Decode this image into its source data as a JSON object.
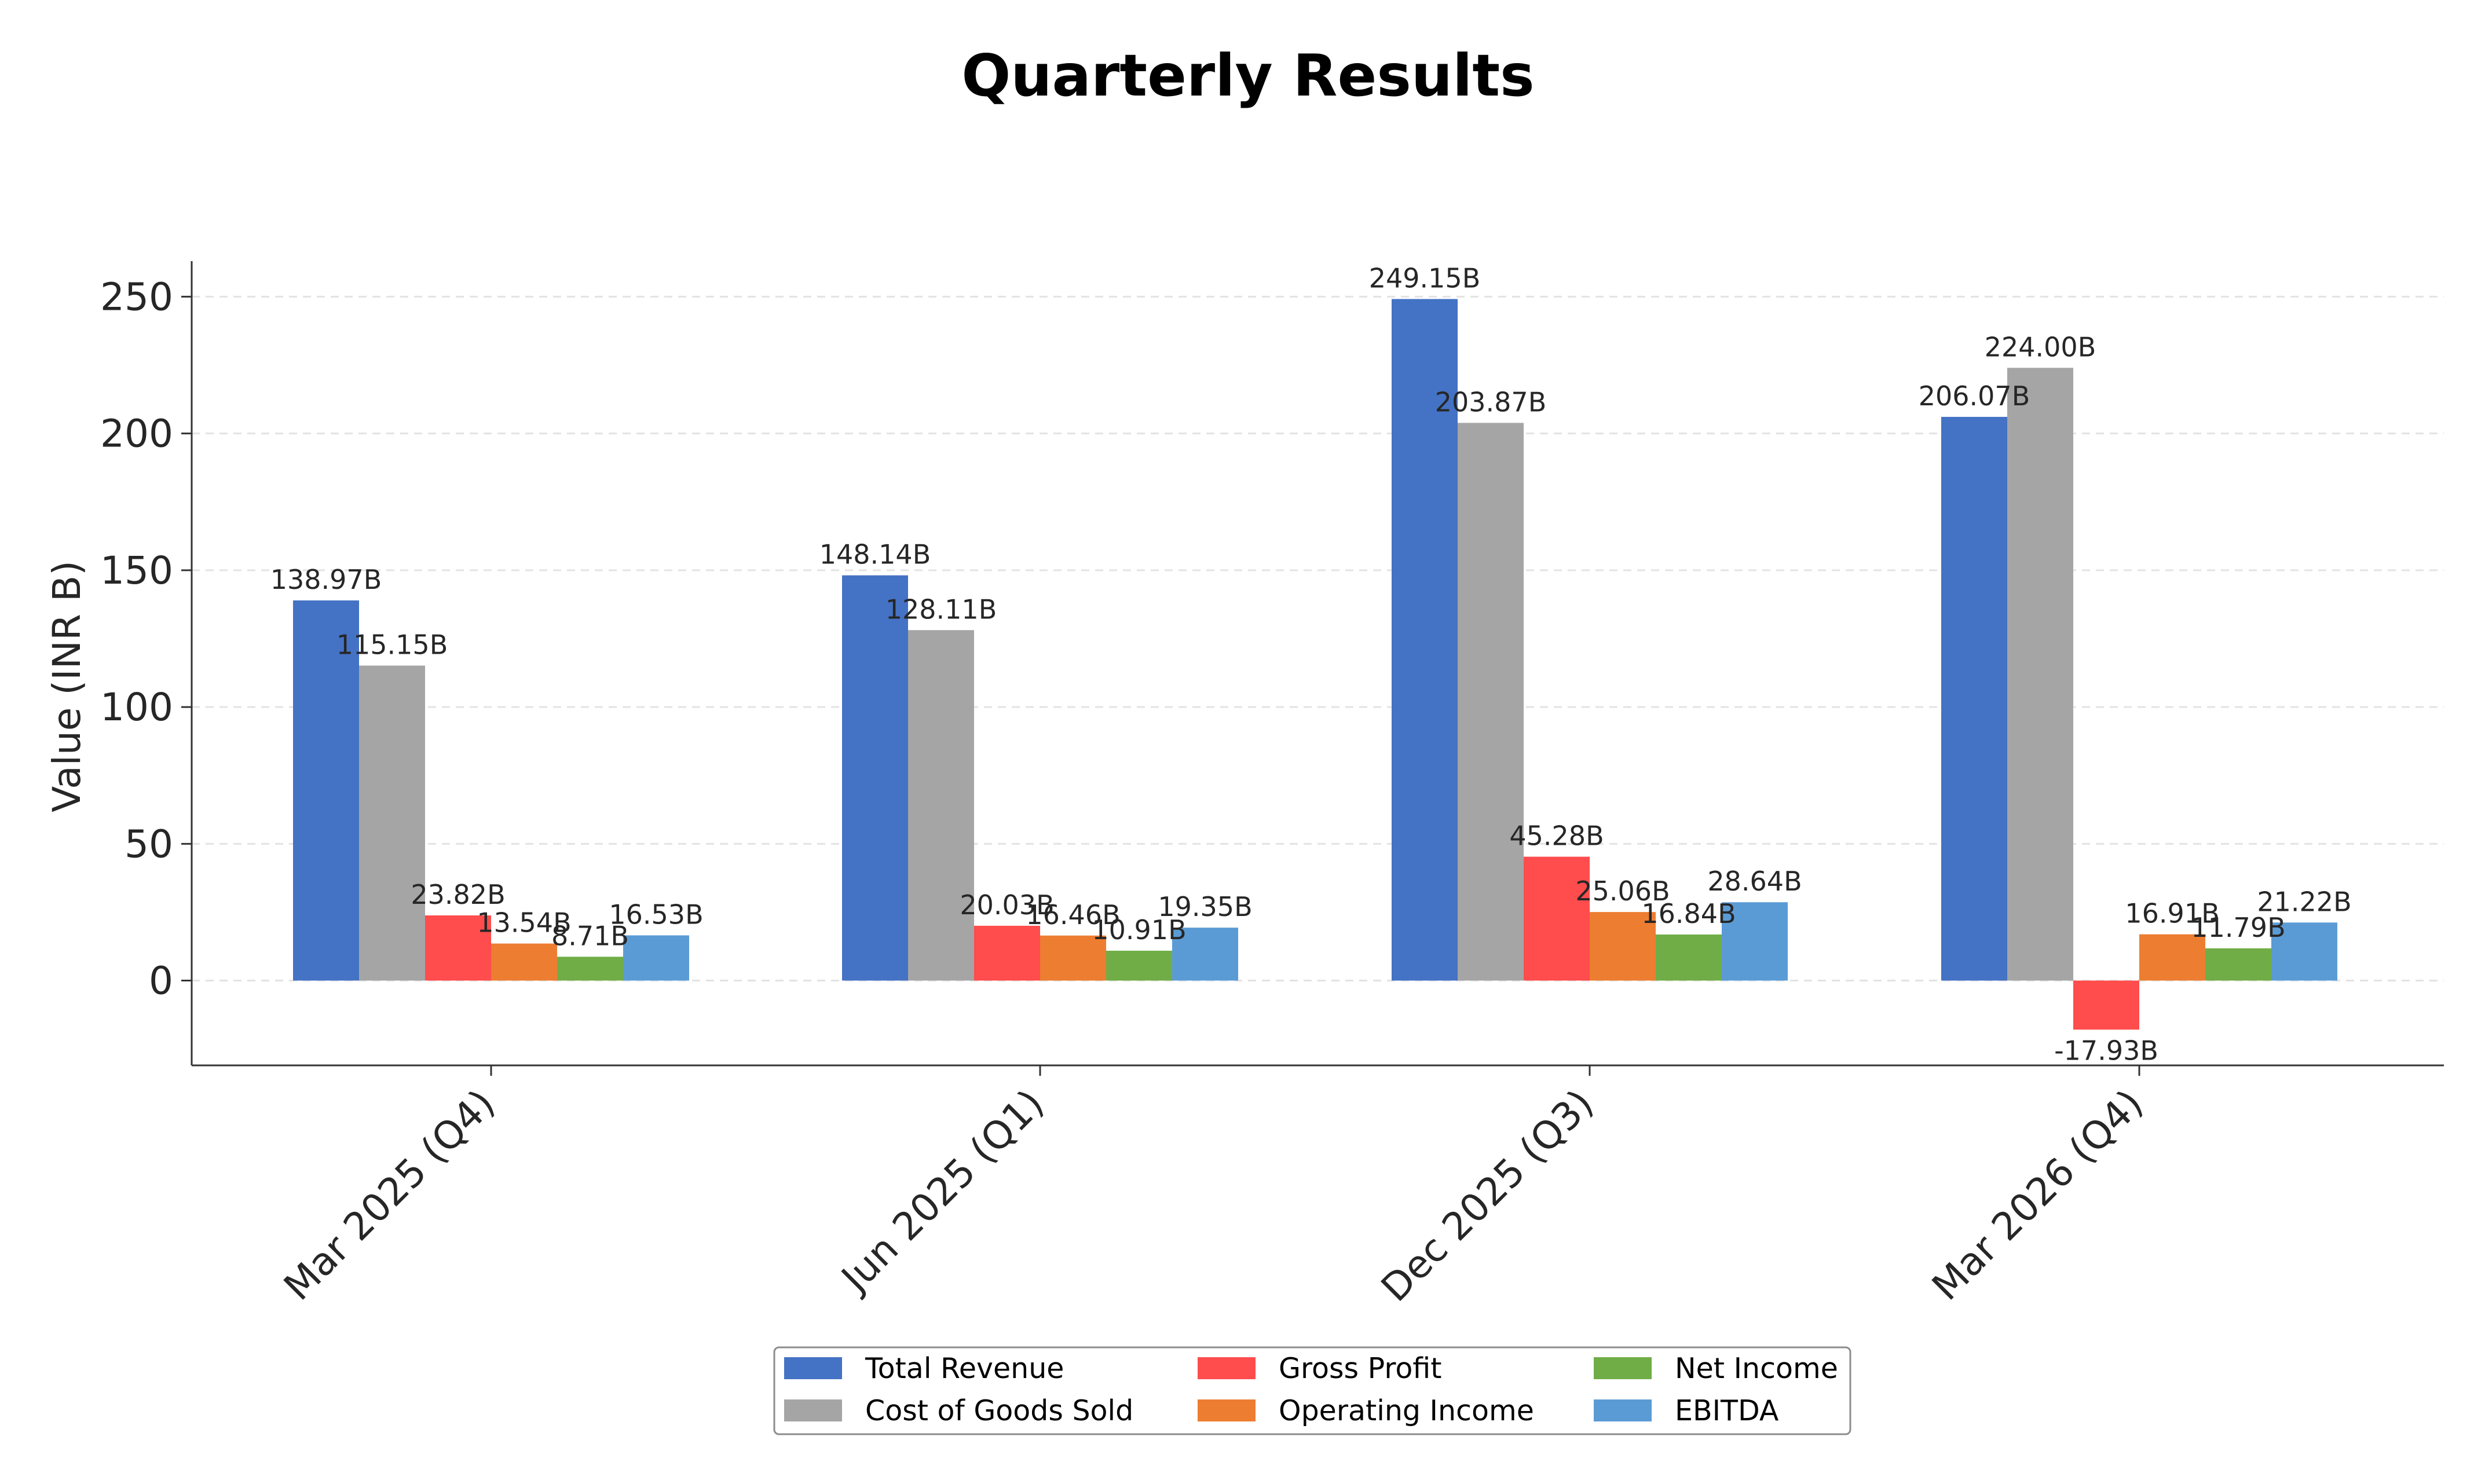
{
  "chart_data": {
    "type": "bar",
    "title": "Quarterly Results",
    "xlabel": "",
    "ylabel": "Value (INR B)",
    "ylim": [
      -31,
      263
    ],
    "yticks": [
      0,
      50,
      100,
      150,
      200,
      250
    ],
    "grid": "horizontal dashed",
    "legend_position": "bottom-center",
    "categories": [
      "Mar 2025 (Q4)",
      "Jun 2025 (Q1)",
      "Dec 2025 (Q3)",
      "Mar 2026 (Q4)"
    ],
    "series": [
      {
        "name": "Total Revenue",
        "color": "#4472C4",
        "values": [
          138.97,
          148.14,
          249.15,
          206.07
        ],
        "labels": [
          "138.97B",
          "148.14B",
          "249.15B",
          "206.07B"
        ]
      },
      {
        "name": "Cost of Goods Sold",
        "color": "#A5A5A5",
        "values": [
          115.15,
          128.11,
          203.87,
          224.0
        ],
        "labels": [
          "115.15B",
          "128.11B",
          "203.87B",
          "224.00B"
        ]
      },
      {
        "name": "Gross Profit",
        "color": "#FF4C4C",
        "values": [
          23.82,
          20.03,
          45.28,
          -17.93
        ],
        "labels": [
          "23.82B",
          "20.03B",
          "45.28B",
          "-17.93B"
        ]
      },
      {
        "name": "Operating Income",
        "color": "#ED7D31",
        "values": [
          13.54,
          16.46,
          25.06,
          16.91
        ],
        "labels": [
          "13.54B",
          "16.46B",
          "25.06B",
          "16.91B"
        ]
      },
      {
        "name": "Net Income",
        "color": "#70AD47",
        "values": [
          8.71,
          10.91,
          16.84,
          11.79
        ],
        "labels": [
          "8.71B",
          "10.91B",
          "16.84B",
          "11.79B"
        ]
      },
      {
        "name": "EBITDA",
        "color": "#5B9BD5",
        "values": [
          16.53,
          19.35,
          28.64,
          21.22
        ],
        "labels": [
          "16.53B",
          "19.35B",
          "28.64B",
          "21.22B"
        ]
      }
    ]
  }
}
